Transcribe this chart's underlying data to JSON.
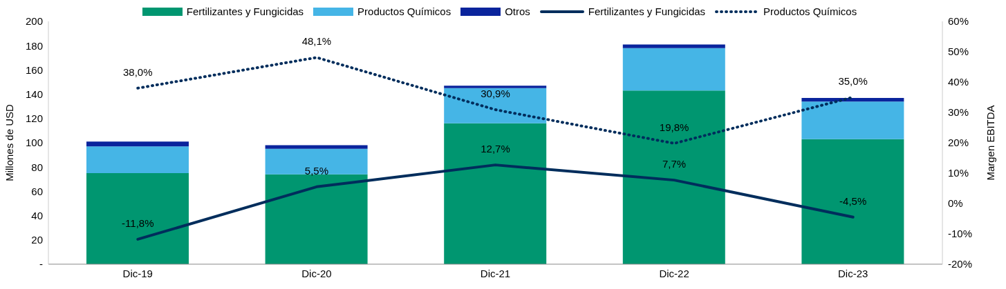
{
  "chart_data": {
    "type": "bar",
    "stacked": true,
    "categories": [
      "Dic-19",
      "Dic-20",
      "Dic-21",
      "Dic-22",
      "Dic-23"
    ],
    "ylabel": "Millones de USD",
    "y2label": "Margen EBITDA",
    "ylim": [
      0,
      200
    ],
    "yticks": [
      {
        "value": 0,
        "label": "-"
      },
      20,
      40,
      60,
      80,
      100,
      120,
      140,
      160,
      180,
      200
    ],
    "y2lim": [
      -20,
      60
    ],
    "y2ticks": [
      {
        "value": -20,
        "label": "-20%"
      },
      {
        "value": -10,
        "label": "-10%"
      },
      {
        "value": 0,
        "label": "0%"
      },
      {
        "value": 10,
        "label": "10%"
      },
      {
        "value": 20,
        "label": "20%"
      },
      {
        "value": 30,
        "label": "30%"
      },
      {
        "value": 40,
        "label": "40%"
      },
      {
        "value": 50,
        "label": "50%"
      },
      {
        "value": 60,
        "label": "60%"
      }
    ],
    "grid": false,
    "legend": "top",
    "series": [
      {
        "name": "Fertilizantes y Fungicidas",
        "color": "#009670",
        "values": [
          75,
          74,
          116,
          143,
          103
        ]
      },
      {
        "name": "Productos Químicos",
        "color": "#45b5e6",
        "values": [
          22,
          21,
          29,
          35,
          31
        ]
      },
      {
        "name": "Otros",
        "color": "#0a249c",
        "values": [
          4,
          3,
          2,
          3,
          3
        ]
      },
      {
        "name": "Fertilizantes y Fungicidas",
        "type": "line",
        "axis": "y2",
        "color": "#002d5c",
        "line_style": "solid",
        "marker": "none",
        "values": [
          -11.8,
          5.5,
          12.7,
          7.7,
          -4.5
        ],
        "value_labels": [
          "-11,8%",
          "5,5%",
          "12,7%",
          "7,7%",
          "-4,5%"
        ]
      },
      {
        "name": "Productos Químicos",
        "type": "line",
        "axis": "y2",
        "color": "#002d5c",
        "line_style": "dotted",
        "marker": "none",
        "values": [
          38.0,
          48.1,
          30.9,
          19.8,
          35.0
        ],
        "value_labels": [
          "38,0%",
          "48,1%",
          "30,9%",
          "19,8%",
          "35,0%"
        ]
      }
    ]
  }
}
